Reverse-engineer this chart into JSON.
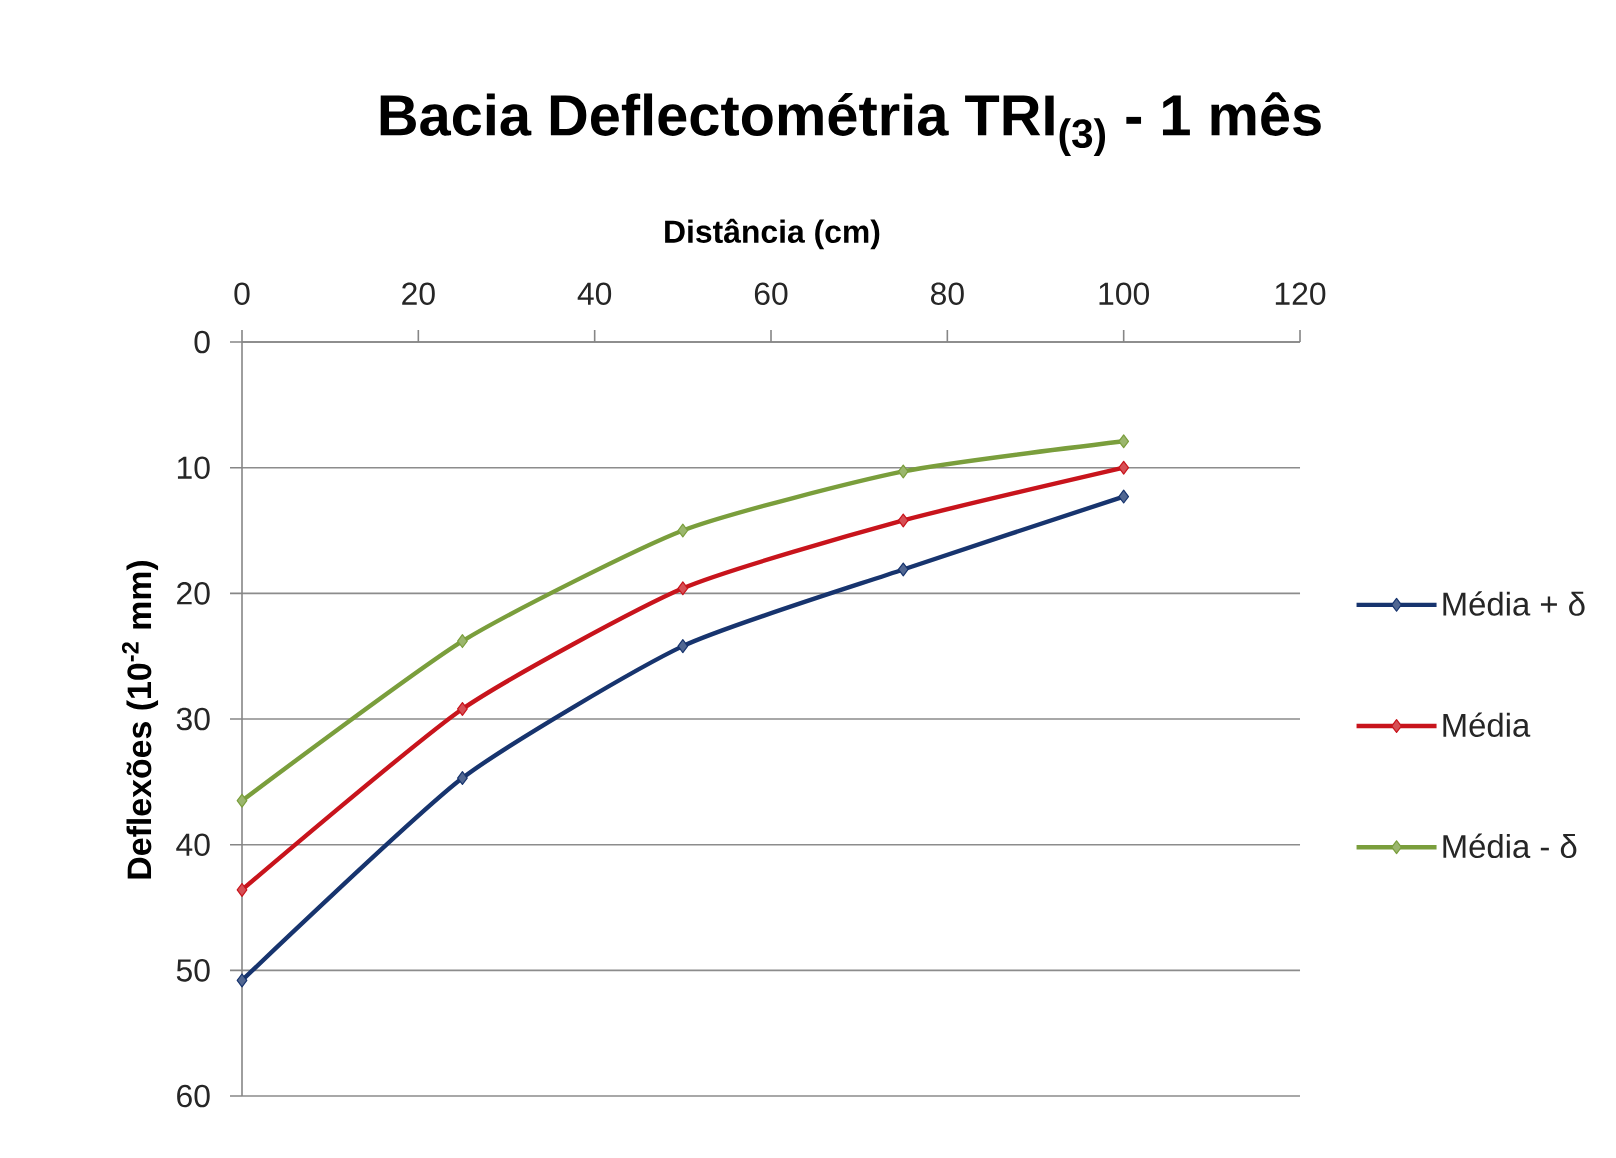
{
  "chart_data": {
    "type": "line",
    "title": "Bacia Deflectométria TRI$_{(3)}$ - 1 mês",
    "xlabel": "Distância (cm)",
    "ylabel": "Deflexões (10$^{-2}$ mm)",
    "x": [
      0,
      25,
      50,
      75,
      100
    ],
    "series": [
      {
        "name": "Média + δ",
        "color": "#17346e",
        "values": [
          50.8,
          34.7,
          24.2,
          18.1,
          12.3
        ]
      },
      {
        "name": "Média",
        "color": "#c8141c",
        "values": [
          43.6,
          29.2,
          19.6,
          14.2,
          10.0
        ]
      },
      {
        "name": "Média - δ",
        "color": "#7a9e3c",
        "values": [
          36.5,
          23.8,
          15.0,
          10.3,
          7.9
        ]
      }
    ],
    "xlim": [
      0,
      120
    ],
    "xticks": [
      0,
      20,
      40,
      60,
      80,
      100,
      120
    ],
    "ylim": [
      60,
      0
    ],
    "yticks": [
      0,
      10,
      20,
      30,
      40,
      50,
      60
    ],
    "grid": "y",
    "legend": "right",
    "marker": "diamond",
    "line_style": "solid"
  }
}
